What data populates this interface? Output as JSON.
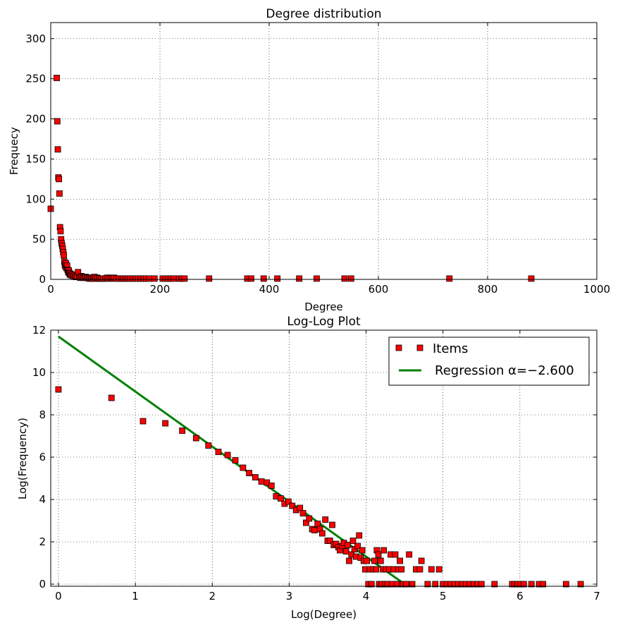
{
  "chart_data": [
    {
      "type": "scatter",
      "title": "Degree distribution",
      "xlabel": "Degree",
      "ylabel": "Frequecy",
      "xlim": [
        0,
        1000
      ],
      "ylim": [
        0,
        320
      ],
      "xticks": [
        0,
        200,
        400,
        600,
        800,
        1000
      ],
      "yticks": [
        0,
        50,
        100,
        150,
        200,
        250,
        300
      ],
      "grid": true,
      "marker_color": "#ff0000",
      "series": [
        {
          "points": [
            [
              0,
              88
            ],
            [
              11,
              251
            ],
            [
              12,
              197
            ],
            [
              13,
              162
            ],
            [
              14,
              127
            ],
            [
              15,
              125
            ],
            [
              16,
              107
            ],
            [
              17,
              65
            ],
            [
              18,
              60
            ],
            [
              19,
              50
            ],
            [
              20,
              45
            ],
            [
              21,
              42
            ],
            [
              22,
              38
            ],
            [
              23,
              34
            ],
            [
              24,
              30
            ],
            [
              25,
              22
            ],
            [
              26,
              18
            ],
            [
              27,
              16
            ],
            [
              28,
              20
            ],
            [
              29,
              14
            ],
            [
              30,
              17
            ],
            [
              31,
              12
            ],
            [
              32,
              9
            ],
            [
              33,
              11
            ],
            [
              34,
              8
            ],
            [
              35,
              6
            ],
            [
              36,
              7
            ],
            [
              38,
              5
            ],
            [
              40,
              6
            ],
            [
              42,
              4
            ],
            [
              44,
              5
            ],
            [
              46,
              3
            ],
            [
              48,
              4
            ],
            [
              50,
              9
            ],
            [
              52,
              3
            ],
            [
              54,
              2
            ],
            [
              56,
              4
            ],
            [
              58,
              3
            ],
            [
              60,
              2
            ],
            [
              62,
              2
            ],
            [
              64,
              3
            ],
            [
              66,
              2
            ],
            [
              68,
              2
            ],
            [
              70,
              1
            ],
            [
              72,
              2
            ],
            [
              74,
              1
            ],
            [
              76,
              2
            ],
            [
              78,
              1
            ],
            [
              80,
              3
            ],
            [
              82,
              1
            ],
            [
              85,
              2
            ],
            [
              88,
              1
            ],
            [
              90,
              1
            ],
            [
              93,
              1
            ],
            [
              96,
              1
            ],
            [
              100,
              1
            ],
            [
              103,
              2
            ],
            [
              106,
              1
            ],
            [
              110,
              2
            ],
            [
              113,
              1
            ],
            [
              116,
              2
            ],
            [
              120,
              1
            ],
            [
              125,
              1
            ],
            [
              130,
              1
            ],
            [
              133,
              1
            ],
            [
              137,
              1
            ],
            [
              141,
              1
            ],
            [
              145,
              1
            ],
            [
              150,
              1
            ],
            [
              155,
              1
            ],
            [
              160,
              1
            ],
            [
              165,
              1
            ],
            [
              170,
              1
            ],
            [
              175,
              1
            ],
            [
              180,
              1
            ],
            [
              190,
              1
            ],
            [
              205,
              1
            ],
            [
              210,
              1
            ],
            [
              215,
              1
            ],
            [
              220,
              1
            ],
            [
              225,
              1
            ],
            [
              235,
              1
            ],
            [
              240,
              1
            ],
            [
              245,
              1
            ],
            [
              290,
              1
            ],
            [
              360,
              1
            ],
            [
              367,
              1
            ],
            [
              390,
              1
            ],
            [
              415,
              1
            ],
            [
              455,
              1
            ],
            [
              487,
              1
            ],
            [
              538,
              1
            ],
            [
              550,
              1
            ],
            [
              730,
              1
            ],
            [
              880,
              1
            ]
          ]
        }
      ]
    },
    {
      "type": "scatter",
      "title": "Log-Log Plot",
      "xlabel": "Log(Degree)",
      "ylabel": "Log(Frequency)",
      "xlim": [
        -0.1,
        7
      ],
      "ylim": [
        -0.1,
        12
      ],
      "xticks": [
        0,
        1,
        2,
        3,
        4,
        5,
        6,
        7
      ],
      "yticks": [
        0,
        2,
        4,
        6,
        8,
        10,
        12
      ],
      "grid": true,
      "legend_position": "top-right",
      "series": [
        {
          "name": "Items",
          "kind": "points",
          "color": "#ff0000",
          "points": [
            [
              0,
              9.2
            ],
            [
              0.69,
              8.8
            ],
            [
              1.1,
              7.7
            ],
            [
              1.39,
              7.6
            ],
            [
              1.61,
              7.25
            ],
            [
              1.79,
              6.9
            ],
            [
              1.95,
              6.55
            ],
            [
              2.08,
              6.25
            ],
            [
              2.2,
              6.1
            ],
            [
              2.3,
              5.85
            ],
            [
              2.4,
              5.5
            ],
            [
              2.48,
              5.25
            ],
            [
              2.56,
              5.05
            ],
            [
              2.64,
              4.85
            ],
            [
              2.71,
              4.8
            ],
            [
              2.77,
              4.65
            ],
            [
              2.83,
              4.15
            ],
            [
              2.89,
              4.05
            ],
            [
              2.94,
              3.8
            ],
            [
              2.99,
              3.9
            ],
            [
              3.04,
              3.7
            ],
            [
              3.09,
              3.5
            ],
            [
              3.14,
              3.6
            ],
            [
              3.18,
              3.35
            ],
            [
              3.22,
              2.9
            ],
            [
              3.26,
              3.1
            ],
            [
              3.3,
              2.6
            ],
            [
              3.33,
              2.55
            ],
            [
              3.37,
              2.85
            ],
            [
              3.4,
              2.6
            ],
            [
              3.43,
              2.4
            ],
            [
              3.47,
              3.05
            ],
            [
              3.5,
              2.05
            ],
            [
              3.53,
              2.05
            ],
            [
              3.56,
              2.8
            ],
            [
              3.58,
              1.85
            ],
            [
              3.61,
              1.9
            ],
            [
              3.64,
              1.75
            ],
            [
              3.66,
              1.6
            ],
            [
              3.69,
              1.8
            ],
            [
              3.71,
              1.95
            ],
            [
              3.74,
              1.55
            ],
            [
              3.76,
              1.85
            ],
            [
              3.78,
              1.1
            ],
            [
              3.81,
              1.4
            ],
            [
              3.83,
              2.05
            ],
            [
              3.85,
              1.65
            ],
            [
              3.87,
              1.3
            ],
            [
              3.89,
              1.8
            ],
            [
              3.91,
              2.3
            ],
            [
              3.93,
              1.25
            ],
            [
              3.95,
              1.6
            ],
            [
              3.97,
              1.1
            ],
            [
              3.99,
              0.7
            ],
            [
              4.01,
              1.1
            ],
            [
              4.03,
              0
            ],
            [
              4.05,
              0.7
            ],
            [
              4.07,
              0
            ],
            [
              4.09,
              0.7
            ],
            [
              4.11,
              1.1
            ],
            [
              4.13,
              0.7
            ],
            [
              4.14,
              1.6
            ],
            [
              4.16,
              1.4
            ],
            [
              4.17,
              0
            ],
            [
              4.19,
              1.1
            ],
            [
              4.2,
              0
            ],
            [
              4.22,
              0.7
            ],
            [
              4.23,
              1.6
            ],
            [
              4.25,
              0
            ],
            [
              4.26,
              0.7
            ],
            [
              4.28,
              0
            ],
            [
              4.3,
              0.7
            ],
            [
              4.32,
              1.4
            ],
            [
              4.34,
              0
            ],
            [
              4.36,
              0.7
            ],
            [
              4.38,
              1.4
            ],
            [
              4.4,
              0
            ],
            [
              4.42,
              0.7
            ],
            [
              4.44,
              1.1
            ],
            [
              4.46,
              0.7
            ],
            [
              4.48,
              0
            ],
            [
              4.52,
              0
            ],
            [
              4.56,
              1.4
            ],
            [
              4.6,
              0
            ],
            [
              4.65,
              0.7
            ],
            [
              4.7,
              0.7
            ],
            [
              4.72,
              1.1
            ],
            [
              4.8,
              0
            ],
            [
              4.85,
              0.7
            ],
            [
              4.9,
              0
            ],
            [
              4.95,
              0.7
            ],
            [
              5.0,
              0
            ],
            [
              5.05,
              0
            ],
            [
              5.1,
              0
            ],
            [
              5.15,
              0
            ],
            [
              5.2,
              0
            ],
            [
              5.25,
              0
            ],
            [
              5.3,
              0
            ],
            [
              5.35,
              0
            ],
            [
              5.4,
              0
            ],
            [
              5.45,
              0
            ],
            [
              5.5,
              0
            ],
            [
              5.67,
              0
            ],
            [
              5.9,
              0
            ],
            [
              5.93,
              0
            ],
            [
              5.97,
              0
            ],
            [
              6.01,
              0
            ],
            [
              6.05,
              0
            ],
            [
              6.15,
              0
            ],
            [
              6.25,
              0
            ],
            [
              6.3,
              0
            ],
            [
              6.6,
              0
            ],
            [
              6.79,
              0
            ]
          ]
        },
        {
          "name": "Regression α=−2.600",
          "kind": "line",
          "color": "#008000",
          "points": [
            [
              0,
              11.7
            ],
            [
              4.5,
              0
            ]
          ]
        }
      ]
    }
  ]
}
